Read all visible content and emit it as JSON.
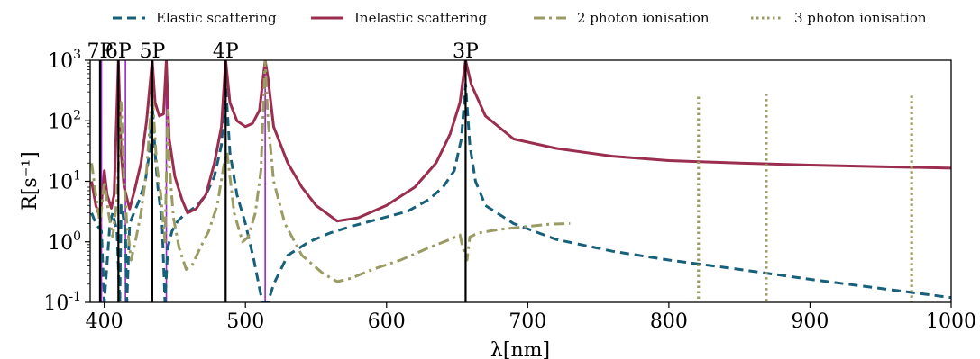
{
  "chart_data": {
    "type": "line",
    "title": "",
    "xlabel": "λ[nm]",
    "ylabel": "R[s⁻¹]",
    "xlim": [
      390,
      1000
    ],
    "ylim": [
      0.1,
      1000
    ],
    "yscale": "log",
    "grid": false,
    "legend_position": "top",
    "x_ticks": [
      400,
      500,
      600,
      700,
      800,
      900,
      1000
    ],
    "y_ticks": [
      {
        "value": 0.1,
        "base": "10",
        "exp": "-1"
      },
      {
        "value": 1,
        "base": "10",
        "exp": "0"
      },
      {
        "value": 10,
        "base": "10",
        "exp": "1"
      },
      {
        "value": 100,
        "base": "10",
        "exp": "2"
      },
      {
        "value": 1000,
        "base": "10",
        "exp": "3"
      }
    ],
    "series": [
      {
        "name": "Elastic scattering",
        "color": "#17607a",
        "style": "dashed",
        "points": [
          [
            391,
            3
          ],
          [
            394,
            2
          ],
          [
            398,
            1.5
          ],
          [
            400,
            0.1
          ],
          [
            404,
            2
          ],
          [
            406,
            3
          ],
          [
            409,
            1.5
          ],
          [
            411,
            0.1
          ],
          [
            412,
            4
          ],
          [
            413,
            3
          ],
          [
            415,
            1.5
          ],
          [
            416,
            0.1
          ],
          [
            418,
            2
          ],
          [
            421,
            3
          ],
          [
            425,
            5
          ],
          [
            429,
            10
          ],
          [
            432,
            30
          ],
          [
            434,
            200
          ],
          [
            436,
            30
          ],
          [
            438,
            8
          ],
          [
            441,
            2
          ],
          [
            443,
            0.1
          ],
          [
            445,
            0.8
          ],
          [
            448,
            1.5
          ],
          [
            452,
            2.2
          ],
          [
            456,
            2.7
          ],
          [
            460,
            3.2
          ],
          [
            466,
            4
          ],
          [
            472,
            6
          ],
          [
            478,
            12
          ],
          [
            483,
            40
          ],
          [
            486,
            400
          ],
          [
            489,
            30
          ],
          [
            494,
            6
          ],
          [
            500,
            2
          ],
          [
            506,
            0.5
          ],
          [
            512,
            0.1
          ],
          [
            516,
            0.1
          ],
          [
            520,
            0.2
          ],
          [
            530,
            0.6
          ],
          [
            545,
            1
          ],
          [
            560,
            1.4
          ],
          [
            575,
            1.8
          ],
          [
            595,
            2.4
          ],
          [
            615,
            3.2
          ],
          [
            630,
            5
          ],
          [
            640,
            8
          ],
          [
            648,
            15
          ],
          [
            653,
            50
          ],
          [
            656,
            400
          ],
          [
            659,
            40
          ],
          [
            663,
            10
          ],
          [
            670,
            4
          ],
          [
            690,
            2
          ],
          [
            720,
            1.1
          ],
          [
            760,
            0.7
          ],
          [
            800,
            0.5
          ],
          [
            850,
            0.35
          ],
          [
            900,
            0.24
          ],
          [
            950,
            0.17
          ],
          [
            1000,
            0.12
          ]
        ]
      },
      {
        "name": "Inelastic scattering",
        "color": "#9b2d4e",
        "style": "solid",
        "points": [
          [
            391,
            10
          ],
          [
            394,
            4
          ],
          [
            397,
            2.5
          ],
          [
            400,
            15
          ],
          [
            402,
            6
          ],
          [
            405,
            3.6
          ],
          [
            407,
            6
          ],
          [
            410,
            1000
          ],
          [
            412,
            30
          ],
          [
            414,
            8
          ],
          [
            418,
            3.5
          ],
          [
            422,
            8
          ],
          [
            426,
            20
          ],
          [
            430,
            100
          ],
          [
            434,
            1000
          ],
          [
            436,
            200
          ],
          [
            439,
            120
          ],
          [
            442,
            130
          ],
          [
            444,
            1000
          ],
          [
            446,
            50
          ],
          [
            450,
            12
          ],
          [
            455,
            5
          ],
          [
            459,
            3
          ],
          [
            465,
            3.5
          ],
          [
            472,
            6
          ],
          [
            478,
            20
          ],
          [
            483,
            80
          ],
          [
            486,
            1000
          ],
          [
            489,
            200
          ],
          [
            494,
            100
          ],
          [
            500,
            80
          ],
          [
            505,
            90
          ],
          [
            510,
            150
          ],
          [
            514,
            1000
          ],
          [
            516,
            500
          ],
          [
            520,
            80
          ],
          [
            530,
            20
          ],
          [
            540,
            8
          ],
          [
            550,
            4
          ],
          [
            565,
            2.2
          ],
          [
            580,
            2.5
          ],
          [
            600,
            4
          ],
          [
            620,
            8
          ],
          [
            635,
            20
          ],
          [
            645,
            60
          ],
          [
            652,
            200
          ],
          [
            656,
            1000
          ],
          [
            660,
            400
          ],
          [
            670,
            120
          ],
          [
            690,
            50
          ],
          [
            720,
            35
          ],
          [
            760,
            26
          ],
          [
            800,
            22
          ],
          [
            850,
            20
          ],
          [
            900,
            18.5
          ],
          [
            950,
            17.5
          ],
          [
            1000,
            16.5
          ]
        ]
      },
      {
        "name": "2 photon ionisation",
        "color": "#9b9b64",
        "style": "dashdot",
        "points": [
          [
            391,
            20
          ],
          [
            394,
            6
          ],
          [
            397,
            2
          ],
          [
            400,
            10
          ],
          [
            403,
            3
          ],
          [
            406,
            1.2
          ],
          [
            409,
            5
          ],
          [
            412,
            200
          ],
          [
            414,
            10
          ],
          [
            416,
            2
          ],
          [
            419,
            0.5
          ],
          [
            422,
            1
          ],
          [
            426,
            3
          ],
          [
            430,
            15
          ],
          [
            434,
            300
          ],
          [
            437,
            20
          ],
          [
            440,
            6
          ],
          [
            443,
            1
          ],
          [
            445,
            150
          ],
          [
            446,
            20
          ],
          [
            449,
            2.5
          ],
          [
            453,
            0.8
          ],
          [
            458,
            0.35
          ],
          [
            462,
            0.4
          ],
          [
            468,
            0.8
          ],
          [
            474,
            1.5
          ],
          [
            480,
            4
          ],
          [
            485,
            20
          ],
          [
            487,
            30
          ],
          [
            492,
            3
          ],
          [
            498,
            1
          ],
          [
            502,
            1.2
          ],
          [
            507,
            3
          ],
          [
            511,
            15
          ],
          [
            514,
            1000
          ],
          [
            516,
            100
          ],
          [
            520,
            10
          ],
          [
            528,
            2
          ],
          [
            540,
            0.6
          ],
          [
            555,
            0.3
          ],
          [
            565,
            0.22
          ],
          [
            575,
            0.25
          ],
          [
            590,
            0.35
          ],
          [
            610,
            0.5
          ],
          [
            630,
            0.8
          ],
          [
            645,
            1.1
          ],
          [
            652,
            1.3
          ],
          [
            654,
            0.8
          ],
          [
            657,
            0.5
          ],
          [
            659,
            1.2
          ],
          [
            665,
            1.4
          ],
          [
            680,
            1.6
          ],
          [
            700,
            1.8
          ],
          [
            715,
            1.95
          ],
          [
            730,
            2
          ]
        ]
      },
      {
        "name": "3 photon ionisation",
        "color": "#9b9b64",
        "style": "dotted",
        "points": [],
        "vertical_spikes": [
          {
            "x": 821,
            "top": 250
          },
          {
            "x": 869,
            "top": 280
          },
          {
            "x": 972,
            "top": 260
          }
        ]
      }
    ],
    "resonances": [
      {
        "label": "7P",
        "x": 397
      },
      {
        "label": "6P",
        "x": 410
      },
      {
        "label": "5P",
        "x": 434
      },
      {
        "label": "4P",
        "x": 486
      },
      {
        "label": "3P",
        "x": 656
      }
    ],
    "resonance_color": "#000000",
    "secondary_lines": {
      "color": "#9b26c9",
      "x": [
        398,
        415,
        444,
        514
      ]
    }
  }
}
